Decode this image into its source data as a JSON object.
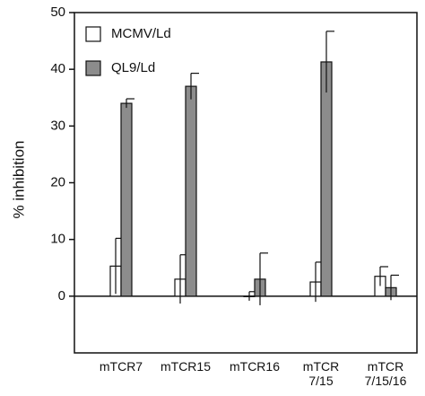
{
  "chart_data": {
    "type": "bar",
    "y_label": "% inhibition",
    "categories": [
      "mTCR7",
      "mTCR15",
      "mTCR16",
      "mTCR\n7/15",
      "mTCR\n7/15/16"
    ],
    "series": [
      {
        "name": "MCMV/Ld",
        "color": "#ffffff",
        "values": [
          5.3,
          3,
          0,
          2.5,
          3.5
        ],
        "errors": [
          4.9,
          4.3,
          0.8,
          3.5,
          1.7
        ]
      },
      {
        "name": "QL9/Ld",
        "color": "#8c8c8c",
        "values": [
          34,
          37,
          3,
          41.3,
          1.5
        ],
        "errors": [
          0.8,
          2.3,
          4.6,
          5.4,
          2.2
        ]
      }
    ],
    "ylim": [
      -10,
      50
    ],
    "yticks": [
      0,
      10,
      20,
      30,
      40,
      50
    ],
    "legend": "upper-left"
  }
}
